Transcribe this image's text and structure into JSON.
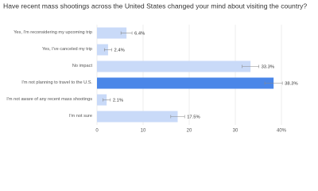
{
  "chart_data": {
    "type": "bar",
    "orientation": "horizontal",
    "title": "Have recent mass shootings across the United States changed your mind about visiting the country?",
    "categories": [
      "Yes, I'm reconsidering my upcoming trip",
      "Yes, I've canceled my trip",
      "No impact",
      "I'm not planning to travel to the U.S.",
      "I'm not aware of any recent mass shootings",
      "I'm not sure"
    ],
    "values": [
      6.4,
      2.4,
      33.3,
      38.3,
      2.1,
      17.5
    ],
    "value_labels": [
      "6.4%",
      "2.4%",
      "33.3%",
      "38.3%",
      "2.1%",
      "17.5%"
    ],
    "errors": [
      1.2,
      0.8,
      1.8,
      1.9,
      0.8,
      1.5
    ],
    "colors": [
      "#c9daf8",
      "#c9daf8",
      "#c9daf8",
      "#4a86e8",
      "#c9daf8",
      "#c9daf8"
    ],
    "xlim": [
      0,
      40
    ],
    "xticks": [
      0,
      10,
      20,
      30,
      {
        "value": 40,
        "label": "40%"
      }
    ],
    "grid": true
  }
}
